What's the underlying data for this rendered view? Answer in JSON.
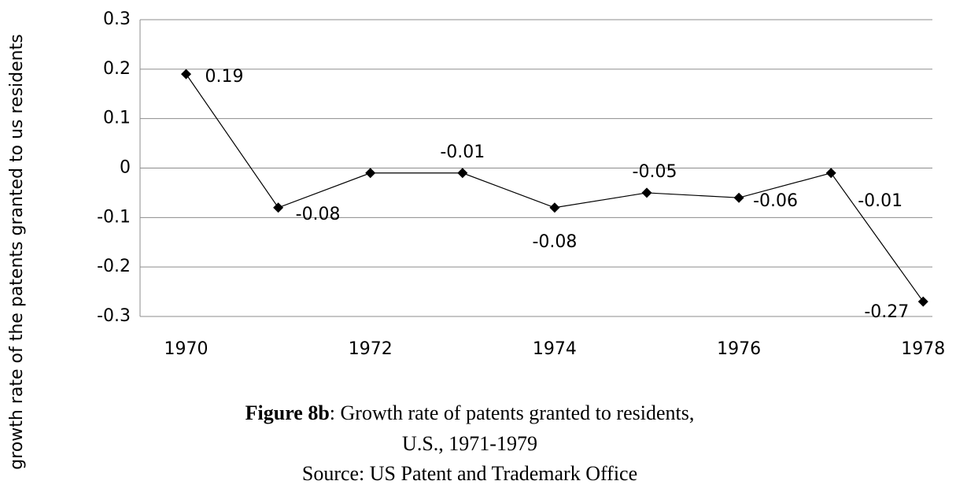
{
  "chart_data": {
    "type": "line",
    "y_label": "growth rate of the patents granted to us residents",
    "figure_label": "Figure 8b",
    "title": ": Growth rate of patents granted to residents,",
    "caption": [
      "U.S., 1971-1979",
      "Source: US Patent and Trademark Office"
    ],
    "x": [
      1970,
      1971,
      1972,
      1973,
      1974,
      1975,
      1976,
      1977,
      1978
    ],
    "values": [
      0.19,
      -0.08,
      -0.01,
      -0.01,
      -0.08,
      -0.05,
      -0.06,
      -0.01,
      -0.27
    ],
    "value_labels": [
      "0.19",
      "-0.08",
      null,
      "-0.01",
      "-0.08",
      "-0.05",
      "-0.06",
      "-0.01",
      "-0.27"
    ],
    "color": "#000000",
    "xlim": [
      1969.5,
      1978.1
    ],
    "xticks": [
      1970,
      1972,
      1974,
      1976,
      1978
    ],
    "ylim": [
      -0.3,
      0.3
    ],
    "yticks": [
      0.3,
      0.2,
      0.1,
      0,
      -0.1,
      -0.2,
      -0.3
    ],
    "grid": true
  }
}
